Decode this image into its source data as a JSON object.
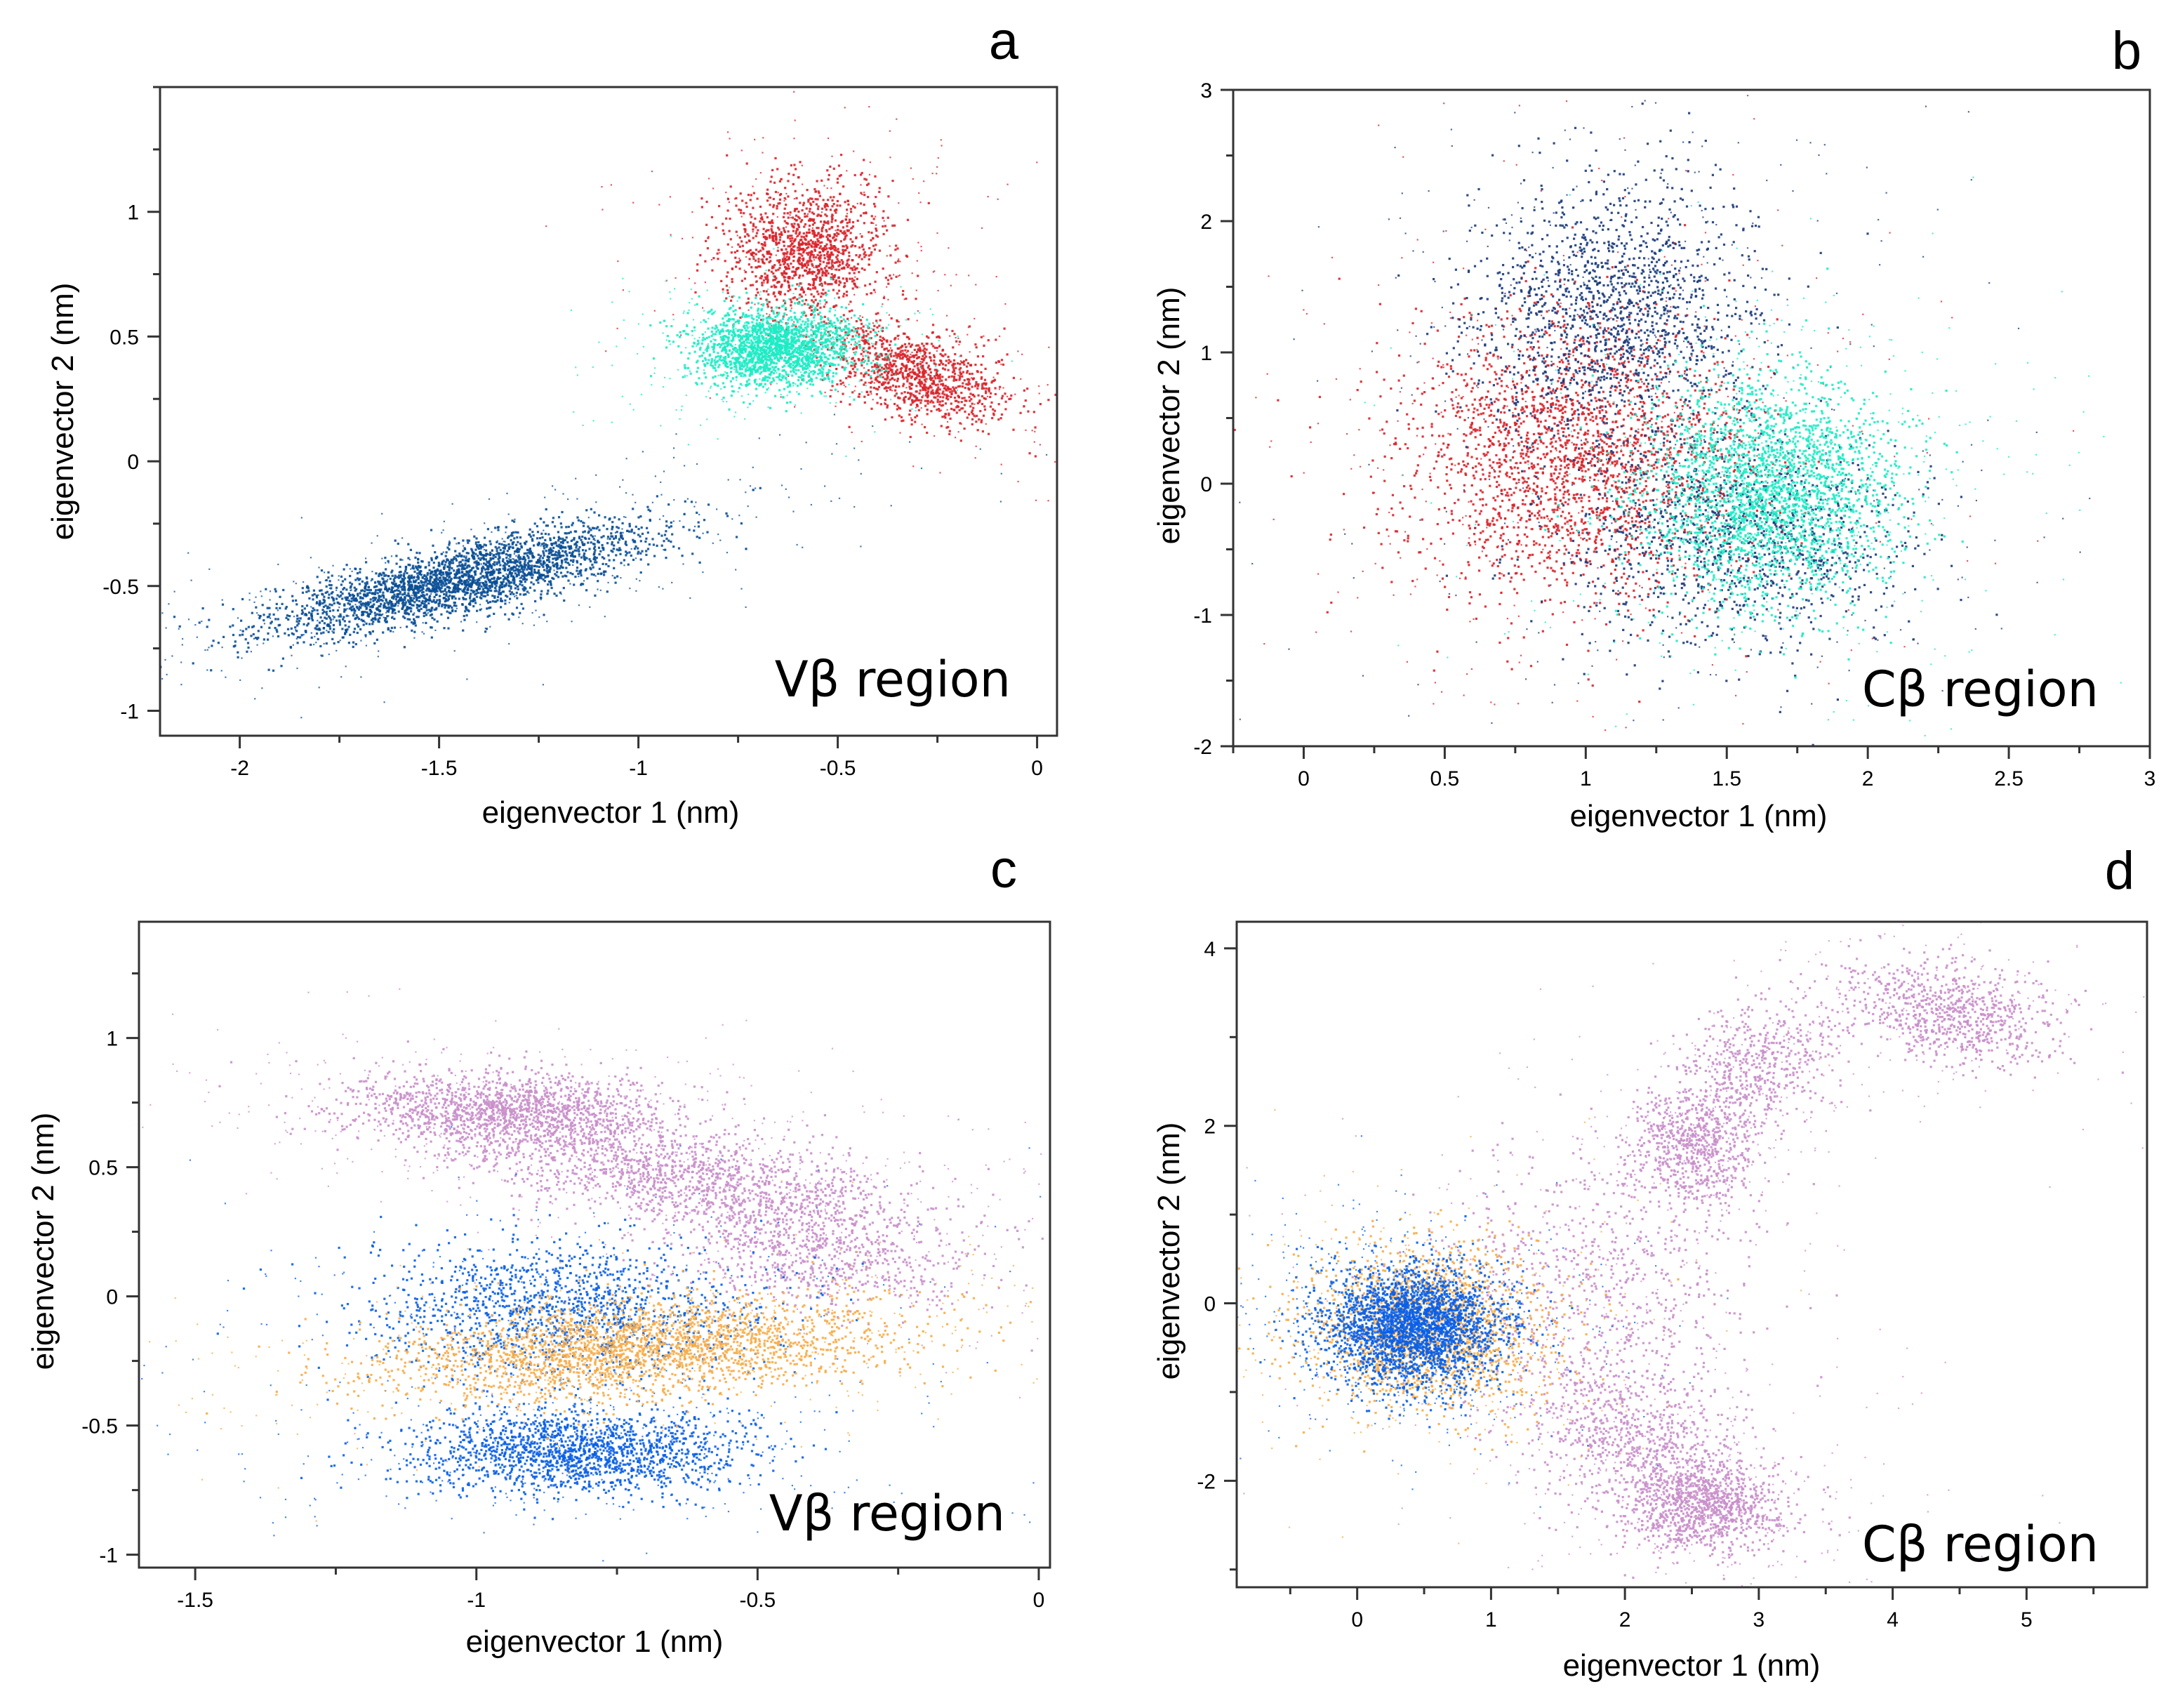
{
  "chart_data": [
    {
      "type": "scatter",
      "panel_letter": "a",
      "region_label": "Vβ region",
      "xlabel": "eigenvector 1 (nm)",
      "ylabel": "eigenvector 2 (nm)",
      "xlim": [
        -2.2,
        0.05
      ],
      "ylim": [
        -1.1,
        1.5
      ],
      "xticks": [
        -2,
        -1.5,
        -1,
        -0.5,
        0
      ],
      "xtick_labels": [
        "-2",
        "-1.5",
        "-1",
        "-0.5",
        "0"
      ],
      "yticks": [
        -1,
        -0.5,
        0,
        0.5,
        1
      ],
      "ytick_labels": [
        "-1",
        "-0.5",
        "0",
        "0.5",
        "1"
      ],
      "series": [
        {
          "name": "dark-blue",
          "color": "#0a4f96",
          "clusters": [
            {
              "cx": -1.45,
              "cy": -0.47,
              "sx": 0.24,
              "sy": 0.11,
              "rho": 0.78,
              "n": 2600
            }
          ]
        },
        {
          "name": "red",
          "color": "#d9232a",
          "clusters": [
            {
              "cx": -0.58,
              "cy": 0.85,
              "sx": 0.1,
              "sy": 0.13,
              "rho": 0.0,
              "n": 1200
            },
            {
              "cx": -0.3,
              "cy": 0.35,
              "sx": 0.12,
              "sy": 0.1,
              "rho": -0.5,
              "n": 1000
            }
          ]
        },
        {
          "name": "turquoise",
          "color": "#1cecc4",
          "clusters": [
            {
              "cx": -0.66,
              "cy": 0.46,
              "sx": 0.1,
              "sy": 0.075,
              "rho": 0.0,
              "n": 1800
            }
          ]
        }
      ]
    },
    {
      "type": "scatter",
      "panel_letter": "b",
      "region_label": "Cβ region",
      "xlabel": "eigenvector 1 (nm)",
      "ylabel": "eigenvector 2 (nm)",
      "xlim": [
        -0.25,
        3.0
      ],
      "ylim": [
        -2.0,
        3.0
      ],
      "xticks": [
        0,
        0.5,
        1,
        1.5,
        2,
        2.5,
        3
      ],
      "xtick_labels": [
        "0",
        "0.5",
        "1",
        "1.5",
        "2",
        "2.5",
        "3"
      ],
      "yticks": [
        -2,
        -1,
        0,
        1,
        2,
        3
      ],
      "ytick_labels": [
        "-2",
        "-1",
        "0",
        "1",
        "2",
        "3"
      ],
      "series": [
        {
          "name": "red",
          "color": "#d9232a",
          "clusters": [
            {
              "cx": 0.95,
              "cy": 0.2,
              "sx": 0.3,
              "sy": 0.55,
              "rho": 0.0,
              "n": 2200
            }
          ]
        },
        {
          "name": "dark-blue",
          "color": "#1a3a7a",
          "clusters": [
            {
              "cx": 1.1,
              "cy": 1.3,
              "sx": 0.25,
              "sy": 0.5,
              "rho": 0.0,
              "n": 1500
            },
            {
              "cx": 1.55,
              "cy": -0.4,
              "sx": 0.3,
              "sy": 0.4,
              "rho": 0.0,
              "n": 1100
            }
          ]
        },
        {
          "name": "turquoise",
          "color": "#1cecc4",
          "clusters": [
            {
              "cx": 1.65,
              "cy": -0.05,
              "sx": 0.23,
              "sy": 0.42,
              "rho": 0.0,
              "n": 2400
            }
          ]
        }
      ]
    },
    {
      "type": "scatter",
      "panel_letter": "c",
      "region_label": "Vβ region",
      "xlabel": "eigenvector 1 (nm)",
      "ylabel": "eigenvector 2 (nm)",
      "xlim": [
        -1.6,
        0.02
      ],
      "ylim": [
        -1.05,
        1.45
      ],
      "xticks": [
        -1.5,
        -1,
        -0.5,
        0
      ],
      "xtick_labels": [
        "-1.5",
        "-1",
        "-0.5",
        "0"
      ],
      "yticks": [
        -1,
        -0.5,
        0,
        0.5,
        1
      ],
      "ytick_labels": [
        "-1",
        "-0.5",
        "0",
        "0.5",
        "1"
      ],
      "series": [
        {
          "name": "lavender",
          "color": "#c98fca",
          "clusters": [
            {
              "cx": -0.95,
              "cy": 0.72,
              "sx": 0.15,
              "sy": 0.08,
              "rho": -0.2,
              "n": 1500
            },
            {
              "cx": -0.6,
              "cy": 0.45,
              "sx": 0.2,
              "sy": 0.12,
              "rho": -0.6,
              "n": 1500
            },
            {
              "cx": -0.4,
              "cy": 0.15,
              "sx": 0.13,
              "sy": 0.1,
              "rho": -0.3,
              "n": 600
            }
          ]
        },
        {
          "name": "blue",
          "color": "#0a5fe8",
          "clusters": [
            {
              "cx": -0.82,
              "cy": -0.6,
              "sx": 0.15,
              "sy": 0.08,
              "rho": 0.0,
              "n": 1600
            },
            {
              "cx": -0.85,
              "cy": -0.05,
              "sx": 0.17,
              "sy": 0.13,
              "rho": 0.0,
              "n": 1300
            }
          ]
        },
        {
          "name": "orange",
          "color": "#f7ac48",
          "clusters": [
            {
              "cx": -0.72,
              "cy": -0.2,
              "sx": 0.22,
              "sy": 0.1,
              "rho": 0.35,
              "n": 2300
            }
          ]
        }
      ]
    },
    {
      "type": "scatter",
      "panel_letter": "d",
      "region_label": "Cβ region",
      "xlabel": "eigenvector 1 (nm)",
      "ylabel": "eigenvector 2 (nm)",
      "xlim": [
        -0.9,
        5.9
      ],
      "ylim": [
        -3.2,
        4.3
      ],
      "xticks": [
        0,
        1,
        2,
        3,
        4,
        5
      ],
      "xtick_labels": [
        "0",
        "1",
        "2",
        "3",
        "4",
        "5"
      ],
      "yticks": [
        -2,
        0,
        2,
        4
      ],
      "ytick_labels": [
        "-2",
        "0",
        "2",
        "4"
      ],
      "series": [
        {
          "name": "lavender",
          "color": "#c98fca",
          "clusters": [
            {
              "cx": 2.6,
              "cy": -2.3,
              "sx": 0.3,
              "sy": 0.25,
              "rho": 0.0,
              "n": 900
            },
            {
              "cx": 2.1,
              "cy": -1.6,
              "sx": 0.45,
              "sy": 0.5,
              "rho": -0.4,
              "n": 900
            },
            {
              "cx": 2.5,
              "cy": 1.8,
              "sx": 0.25,
              "sy": 0.35,
              "rho": 0.0,
              "n": 700
            },
            {
              "cx": 3.0,
              "cy": 2.7,
              "sx": 0.3,
              "sy": 0.35,
              "rho": 0.3,
              "n": 500
            },
            {
              "cx": 4.4,
              "cy": 3.3,
              "sx": 0.4,
              "sy": 0.28,
              "rho": -0.3,
              "n": 800
            },
            {
              "cx": 1.8,
              "cy": 0.3,
              "sx": 0.6,
              "sy": 0.8,
              "rho": 0.0,
              "n": 700
            }
          ]
        },
        {
          "name": "orange",
          "color": "#f7ac48",
          "clusters": [
            {
              "cx": 0.5,
              "cy": -0.3,
              "sx": 0.45,
              "sy": 0.45,
              "rho": 0.0,
              "n": 1600
            }
          ]
        },
        {
          "name": "blue",
          "color": "#0a5fe8",
          "clusters": [
            {
              "cx": 0.4,
              "cy": -0.25,
              "sx": 0.33,
              "sy": 0.33,
              "rho": 0.0,
              "n": 2600
            }
          ]
        }
      ]
    }
  ]
}
